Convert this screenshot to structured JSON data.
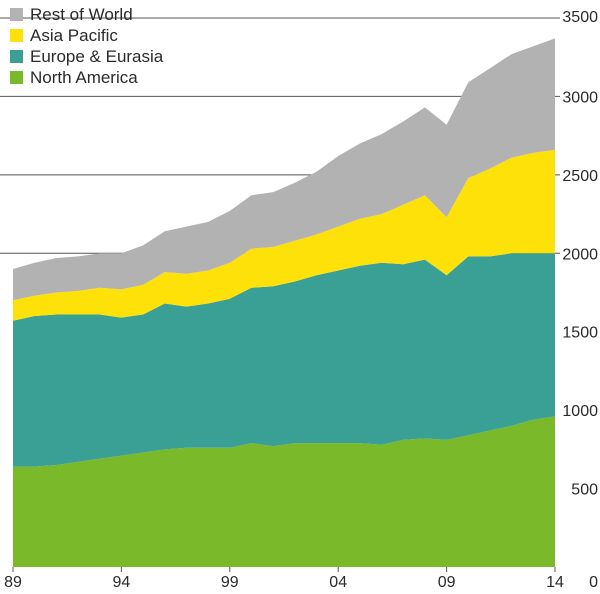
{
  "chart_data": {
    "type": "area",
    "stacked": true,
    "title": "",
    "xlabel": "",
    "ylabel": "",
    "ylim": [
      0,
      3500
    ],
    "xlim": [
      1989,
      2014
    ],
    "x": [
      1989,
      1990,
      1991,
      1992,
      1993,
      1994,
      1995,
      1996,
      1997,
      1998,
      1999,
      2000,
      2001,
      2002,
      2003,
      2004,
      2005,
      2006,
      2007,
      2008,
      2009,
      2010,
      2011,
      2012,
      2013,
      2014
    ],
    "x_tick_labels": [
      "89",
      "94",
      "99",
      "04",
      "09",
      "14"
    ],
    "x_tick_values": [
      1989,
      1994,
      1999,
      2004,
      2009,
      2014
    ],
    "y_tick_values": [
      0,
      500,
      1000,
      1500,
      2000,
      2500,
      3000,
      3500
    ],
    "y_tick_labels": [
      "0",
      "500",
      "1000",
      "1500",
      "2000",
      "2500",
      "3000",
      "3500"
    ],
    "gridlines": [
      2000,
      2500,
      3000,
      3500
    ],
    "legend_position": "top-left",
    "series": [
      {
        "name": "North America",
        "color": "#7ab929",
        "values": [
          640,
          640,
          650,
          670,
          690,
          710,
          730,
          750,
          760,
          760,
          760,
          790,
          770,
          790,
          790,
          790,
          790,
          780,
          810,
          820,
          810,
          840,
          870,
          900,
          940,
          960
        ]
      },
      {
        "name": "Europe & Eurasia",
        "color": "#3aa095",
        "values": [
          930,
          960,
          960,
          940,
          920,
          880,
          880,
          930,
          900,
          920,
          950,
          990,
          1020,
          1030,
          1070,
          1100,
          1130,
          1160,
          1120,
          1140,
          1050,
          1140,
          1110,
          1100,
          1060,
          1040
        ]
      },
      {
        "name": "Asia Pacific",
        "color": "#ffe10a",
        "values": [
          130,
          130,
          140,
          150,
          170,
          180,
          190,
          200,
          210,
          210,
          230,
          250,
          250,
          260,
          260,
          280,
          300,
          310,
          380,
          410,
          370,
          500,
          560,
          610,
          640,
          660
        ]
      },
      {
        "name": "Rest of World",
        "color": "#b3b2b3",
        "values": [
          200,
          210,
          220,
          220,
          220,
          230,
          250,
          260,
          300,
          310,
          330,
          340,
          350,
          370,
          400,
          450,
          480,
          510,
          530,
          560,
          590,
          610,
          640,
          660,
          680,
          710
        ]
      }
    ]
  },
  "legend_order": [
    "Rest of World",
    "Asia Pacific",
    "Europe & Eurasia",
    "North America"
  ]
}
